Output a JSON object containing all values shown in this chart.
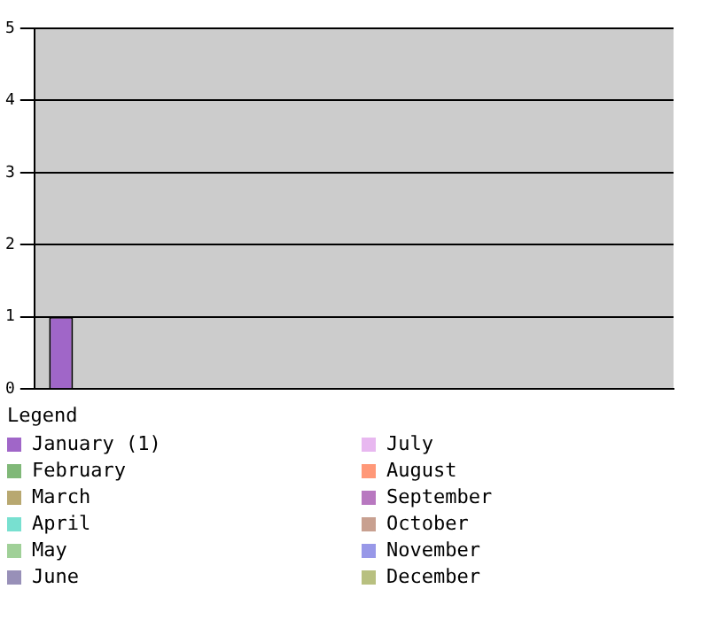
{
  "chart_data": {
    "type": "bar",
    "categories": [
      null
    ],
    "ylim": [
      0,
      5
    ],
    "yticks": [
      0,
      1,
      2,
      3,
      4,
      5
    ],
    "grid": "y",
    "legend": "bottom",
    "legend_title": "Legend",
    "series": [
      {
        "name": "January (1)",
        "color": "#a066c8",
        "values": [
          1
        ]
      },
      {
        "name": "February",
        "color": "#80b878",
        "values": [
          0
        ]
      },
      {
        "name": "March",
        "color": "#b8a870",
        "values": [
          0
        ]
      },
      {
        "name": "April",
        "color": "#78e0d0",
        "values": [
          0
        ]
      },
      {
        "name": "May",
        "color": "#a0d098",
        "values": [
          0
        ]
      },
      {
        "name": "June",
        "color": "#9890b8",
        "values": [
          0
        ]
      },
      {
        "name": "July",
        "color": "#e8b8f0",
        "values": [
          0
        ]
      },
      {
        "name": "August",
        "color": "#ff9878",
        "values": [
          0
        ]
      },
      {
        "name": "September",
        "color": "#b878c0",
        "values": [
          0
        ]
      },
      {
        "name": "October",
        "color": "#c8a090",
        "values": [
          0
        ]
      },
      {
        "name": "November",
        "color": "#9898e8",
        "values": [
          0
        ]
      },
      {
        "name": "December",
        "color": "#b8c080",
        "values": [
          0
        ]
      }
    ]
  }
}
